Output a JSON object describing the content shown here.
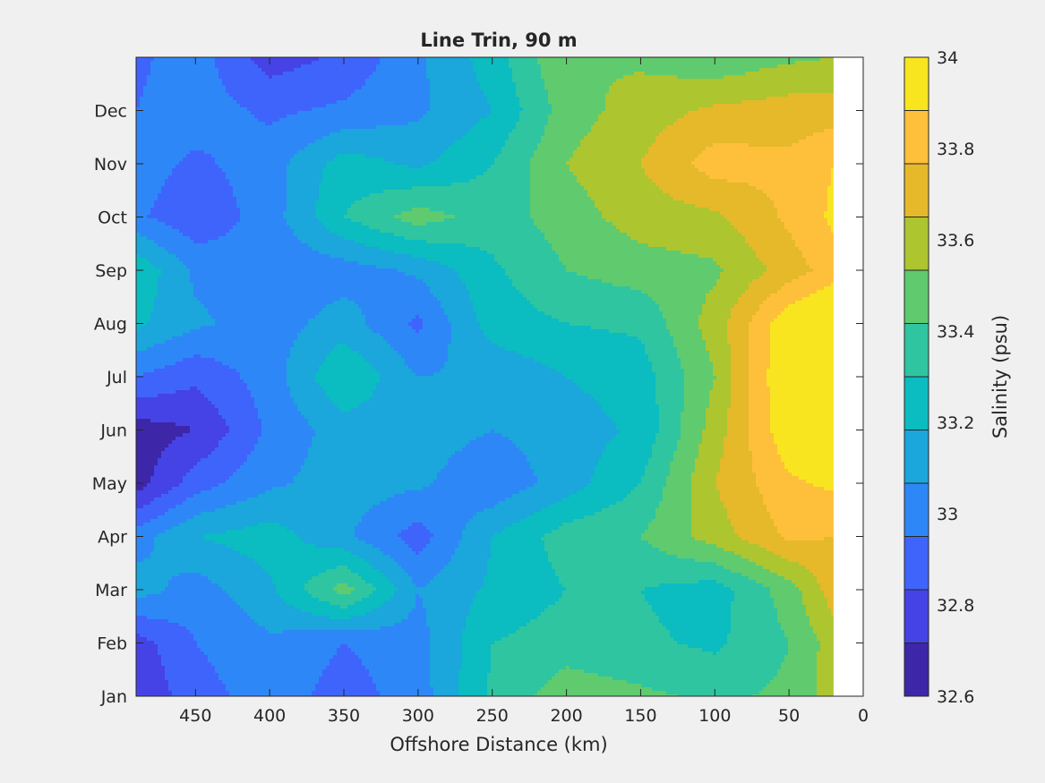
{
  "chart_data": {
    "type": "heatmap",
    "subtype": "filled-contour",
    "title": "Line Trin, 90 m",
    "xlabel": "Offshore Distance (km)",
    "ylabel": "",
    "x_direction": "reversed",
    "xlim": [
      0,
      490
    ],
    "xticks": [
      450,
      400,
      350,
      300,
      250,
      200,
      150,
      100,
      50,
      0
    ],
    "ylim": [
      1,
      13
    ],
    "yticks": [
      "Jan",
      "Feb",
      "Mar",
      "Apr",
      "May",
      "Jun",
      "Jul",
      "Aug",
      "Sep",
      "Oct",
      "Nov",
      "Dec"
    ],
    "data_x_range": [
      20,
      490
    ],
    "grid": false,
    "colorbar": {
      "label": "Salinity (psu)",
      "range": [
        32.6,
        34
      ],
      "step": 0.1,
      "ticks": [
        32.6,
        32.8,
        33,
        33.2,
        33.4,
        33.6,
        33.8,
        34
      ],
      "colors": [
        "#3e26a8",
        "#4543e5",
        "#3f64fc",
        "#2e87f7",
        "#1ba6dc",
        "#0bbcc0",
        "#2fc5a0",
        "#5fcb6e",
        "#adc52f",
        "#e5b92a",
        "#fec03a",
        "#f8e520"
      ]
    },
    "x_nodes": [
      490,
      450,
      400,
      350,
      300,
      250,
      200,
      150,
      100,
      50,
      20
    ],
    "y_nodes_month": [
      1,
      2,
      3,
      4,
      5,
      6,
      7,
      8,
      9,
      10,
      11,
      12,
      13
    ],
    "salinity_grid": [
      [
        32.72,
        32.85,
        32.96,
        32.85,
        32.95,
        33.22,
        33.36,
        33.32,
        33.28,
        33.32,
        33.45
      ],
      [
        32.75,
        32.9,
        32.98,
        32.9,
        32.96,
        33.2,
        33.25,
        33.22,
        33.18,
        33.3,
        33.45
      ],
      [
        33.05,
        32.95,
        33.08,
        33.35,
        33.0,
        33.12,
        33.2,
        33.2,
        33.15,
        33.35,
        33.55
      ],
      [
        32.95,
        33.1,
        33.15,
        33.02,
        32.85,
        33.1,
        33.25,
        33.3,
        33.45,
        33.62,
        33.6
      ],
      [
        32.65,
        32.85,
        32.98,
        33.05,
        33.02,
        32.92,
        33.05,
        33.2,
        33.5,
        33.68,
        33.72
      ],
      [
        32.65,
        32.7,
        32.92,
        33.05,
        33.05,
        33.0,
        33.05,
        33.12,
        33.45,
        33.78,
        33.85
      ],
      [
        32.9,
        32.82,
        32.95,
        33.2,
        33.0,
        33.02,
        33.1,
        33.15,
        33.4,
        33.82,
        33.95
      ],
      [
        33.12,
        33.02,
        32.95,
        33.05,
        32.88,
        33.15,
        33.2,
        33.22,
        33.45,
        33.78,
        33.85
      ],
      [
        33.18,
        32.98,
        32.92,
        32.95,
        33.02,
        33.18,
        33.3,
        33.35,
        33.38,
        33.55,
        33.65
      ],
      [
        32.92,
        32.82,
        32.95,
        33.2,
        33.35,
        33.25,
        33.35,
        33.45,
        33.48,
        33.62,
        33.72
      ],
      [
        32.95,
        32.88,
        32.95,
        33.15,
        33.08,
        33.2,
        33.4,
        33.5,
        33.65,
        33.62,
        33.7
      ],
      [
        32.9,
        32.95,
        32.88,
        32.92,
        32.98,
        33.1,
        33.35,
        33.45,
        33.52,
        33.55,
        33.55
      ],
      [
        32.88,
        32.95,
        32.75,
        32.82,
        32.98,
        33.15,
        33.4,
        33.38,
        33.32,
        33.38,
        33.4
      ]
    ]
  }
}
